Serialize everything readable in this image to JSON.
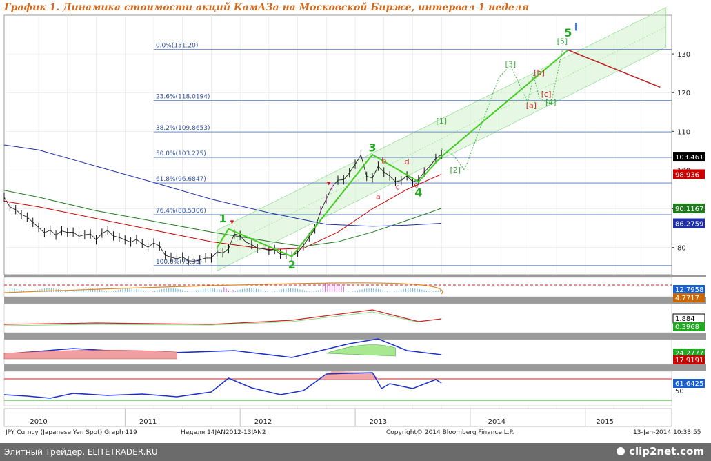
{
  "title": "График 1.   Динамика стоимости акций КамАЗа на Московской Бирже, интервал 1 неделя",
  "footer": {
    "left": "Элитный Трейдер, ELITETRADER.RU",
    "right": "clip2net.com"
  },
  "info": {
    "instrument": "JPY Curncy (Japanese Yen Spot) Graph 119",
    "period": "Неделя 14JAN2012-13JAN2",
    "copyright": "Copyright© 2014 Bloomberg Finance L.P.",
    "timestamp": "13-Jan-2014 10:33:55"
  },
  "chart_data": {
    "type": "line",
    "x_ticks": [
      "2010",
      "2011",
      "2012",
      "2013",
      "2014",
      "2015"
    ],
    "y_ticks": [
      80,
      90,
      100,
      110,
      120,
      130
    ],
    "ylim": [
      73,
      140
    ],
    "fib_levels": [
      {
        "label": "0.0%(131.20)",
        "value": 131.2
      },
      {
        "label": "23.6%(118.0194)",
        "value": 118.0194
      },
      {
        "label": "38.2%(109.8653)",
        "value": 109.8653
      },
      {
        "label": "50.0%(103.275)",
        "value": 103.275
      },
      {
        "label": "61.8%(96.6847)",
        "value": 96.6847
      },
      {
        "label": "76.4%(88.5306)",
        "value": 88.5306
      },
      {
        "label": "100.0%(75.35)",
        "value": 75.35
      }
    ],
    "value_badges": [
      {
        "label": "103.461",
        "value": 103.461,
        "color": "#000000"
      },
      {
        "label": "98.936",
        "value": 98.936,
        "color": "#cc0000"
      },
      {
        "label": "90.1167",
        "value": 90.1167,
        "color": "#207a20"
      },
      {
        "label": "86.2759",
        "value": 86.2759,
        "color": "#1f2fa8"
      }
    ],
    "wave_labels": [
      {
        "text": "1",
        "x": 2011.6,
        "y": 86.5,
        "color": "#22aa22"
      },
      {
        "text": "2",
        "x": 2012.2,
        "y": 74.6,
        "color": "#22aa22"
      },
      {
        "text": "3",
        "x": 2012.9,
        "y": 104.8,
        "color": "#22aa22"
      },
      {
        "text": "4",
        "x": 2013.3,
        "y": 93.2,
        "color": "#22aa22"
      },
      {
        "text": "5",
        "x": 2014.6,
        "y": 134.5,
        "color": "#22aa22"
      },
      {
        "text": "I",
        "x": 2014.67,
        "y": 136.0,
        "color": "#4a7fd0"
      },
      {
        "text": "a",
        "x": 2012.95,
        "y": 92.5,
        "color": "#cc2222"
      },
      {
        "text": "b",
        "x": 2013.0,
        "y": 101.8,
        "color": "#cc2222"
      },
      {
        "text": "c",
        "x": 2013.12,
        "y": 95.0,
        "color": "#cc2222"
      },
      {
        "text": "d",
        "x": 2013.2,
        "y": 101.5,
        "color": "#cc2222"
      },
      {
        "text": "e",
        "x": 2013.28,
        "y": 95.5,
        "color": "#cc2222"
      },
      {
        "text": "[1]",
        "x": 2013.5,
        "y": 112.0,
        "color": "#33aa33"
      },
      {
        "text": "[2]",
        "x": 2013.62,
        "y": 99.4,
        "color": "#33aa33"
      },
      {
        "text": "[3]",
        "x": 2014.1,
        "y": 126.7,
        "color": "#33aa33"
      },
      {
        "text": "[4]",
        "x": 2014.45,
        "y": 116.8,
        "color": "#33aa33"
      },
      {
        "text": "[5]",
        "x": 2014.55,
        "y": 132.6,
        "color": "#33aa33"
      },
      {
        "text": "[a]",
        "x": 2014.28,
        "y": 116.0,
        "color": "#cc2222"
      },
      {
        "text": "[b]",
        "x": 2014.35,
        "y": 124.5,
        "color": "#cc2222"
      },
      {
        "text": "[c]",
        "x": 2014.41,
        "y": 119.0,
        "color": "#cc2222"
      }
    ],
    "price": {
      "x": [
        2009.7,
        2009.75,
        2009.8,
        2009.85,
        2009.9,
        2009.95,
        2010.0,
        2010.05,
        2010.1,
        2010.15,
        2010.2,
        2010.25,
        2010.3,
        2010.35,
        2010.4,
        2010.45,
        2010.5,
        2010.55,
        2010.6,
        2010.65,
        2010.7,
        2010.75,
        2010.8,
        2010.85,
        2010.9,
        2010.95,
        2011.0,
        2011.05,
        2011.1,
        2011.15,
        2011.2,
        2011.25,
        2011.3,
        2011.35,
        2011.4,
        2011.45,
        2011.5,
        2011.55,
        2011.6,
        2011.65,
        2011.7,
        2011.75,
        2011.8,
        2011.85,
        2011.9,
        2011.95,
        2012.0,
        2012.05,
        2012.1,
        2012.15,
        2012.2,
        2012.25,
        2012.3,
        2012.35,
        2012.4,
        2012.45,
        2012.5,
        2012.55,
        2012.6,
        2012.65,
        2012.7,
        2012.75,
        2012.8,
        2012.85,
        2012.9,
        2012.95,
        2013.0,
        2013.05,
        2013.1,
        2013.15,
        2013.2,
        2013.25,
        2013.3,
        2013.35,
        2013.4,
        2013.45,
        2013.5
      ],
      "y": [
        93,
        90.5,
        89.8,
        88.5,
        87.9,
        86.5,
        85.2,
        83.8,
        84.5,
        83.2,
        84.3,
        83.9,
        84.0,
        82.9,
        83.3,
        83.5,
        82.0,
        83.7,
        84.4,
        83.0,
        82.6,
        82.0,
        81.4,
        82.1,
        81.0,
        80.1,
        81.2,
        80.4,
        78.0,
        77.5,
        77.1,
        77.6,
        76.6,
        76.5,
        76.8,
        77.3,
        77.3,
        78.9,
        78.6,
        79.7,
        83.5,
        83.1,
        81.4,
        80.8,
        79.8,
        79.7,
        79.3,
        79.5,
        78.3,
        78.3,
        77.8,
        78.8,
        80.5,
        82.7,
        84.8,
        89.5,
        92.6,
        95.7,
        97.4,
        97.5,
        99.3,
        101.5,
        103.9,
        98.4,
        98.0,
        101.0,
        99.5,
        98.5,
        97.0,
        97.3,
        98.5,
        97.0,
        97.5,
        99.5,
        101.0,
        103.0,
        104.0
      ]
    },
    "moving_averages": [
      {
        "color": "#cc0000",
        "x": [
          2009.7,
          2010.0,
          2010.5,
          2011.0,
          2011.5,
          2012.0,
          2012.3,
          2012.6,
          2012.9,
          2013.2,
          2013.5
        ],
        "y": [
          92.0,
          90.5,
          87.5,
          84.5,
          81.5,
          79.5,
          79.8,
          84.0,
          90.0,
          95.0,
          98.936
        ]
      },
      {
        "color": "#207a20",
        "x": [
          2009.7,
          2010.0,
          2010.5,
          2011.0,
          2011.5,
          2012.0,
          2012.3,
          2012.6,
          2012.9,
          2013.2,
          2013.5
        ],
        "y": [
          94.8,
          93.0,
          89.5,
          86.8,
          84.0,
          81.6,
          80.3,
          81.5,
          84.0,
          87.0,
          90.1167
        ]
      },
      {
        "color": "#1f2fa8",
        "x": [
          2009.7,
          2010.0,
          2010.5,
          2011.0,
          2011.5,
          2012.0,
          2012.5,
          2012.9,
          2013.2,
          2013.5
        ],
        "y": [
          106.5,
          105.2,
          101.0,
          96.8,
          92.5,
          89.0,
          86.0,
          85.5,
          85.8,
          86.2759
        ]
      }
    ],
    "projection": {
      "x": [
        2013.5,
        2013.6,
        2013.7,
        2013.85,
        2014.0,
        2014.1,
        2014.25,
        2014.3,
        2014.35,
        2014.45,
        2014.55
      ],
      "y": [
        105.5,
        104.0,
        100.0,
        112.0,
        124.0,
        127.0,
        117.5,
        124.5,
        118.5,
        117.0,
        131.0
      ]
    },
    "wave_path": {
      "x": [
        2011.55,
        2011.65,
        2012.2,
        2012.9,
        2013.3,
        2013.5,
        2014.6
      ],
      "y": [
        80.0,
        84.8,
        77.7,
        104.0,
        97.0,
        103.5,
        131.0
      ]
    },
    "downtrend": {
      "x": [
        2014.6,
        2015.4
      ],
      "y": [
        131.0,
        121.4
      ]
    },
    "indicators": [
      {
        "badges": [
          {
            "label": "12.7958",
            "color": "#1a5fcc"
          },
          {
            "label": "4.7717",
            "color": "#cc6600"
          }
        ]
      },
      {
        "badges": [
          {
            "label": "1.884",
            "color": "#000000"
          },
          {
            "label": "0.3968",
            "color": "#22aa22"
          }
        ]
      },
      {
        "badges": [
          {
            "label": "24.2777",
            "color": "#22aa22"
          },
          {
            "label": "17.9191",
            "color": "#cc0000"
          }
        ]
      },
      {
        "badges": [
          {
            "label": "61.6425",
            "color": "#1a5fcc"
          }
        ],
        "ticks": [
          {
            "label": "50",
            "value": 50
          }
        ]
      }
    ]
  }
}
